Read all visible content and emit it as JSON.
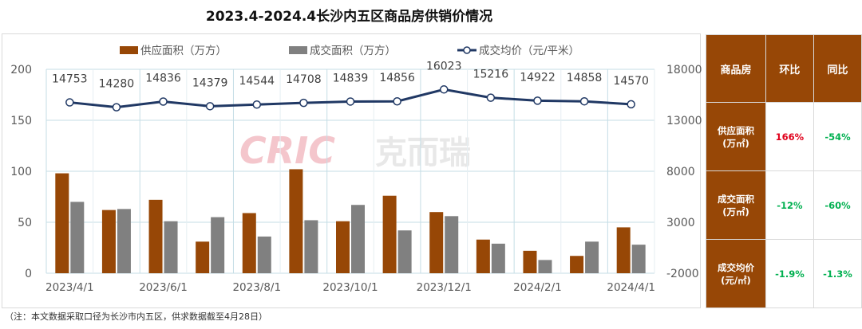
{
  "title": "2023.4-2024.4长沙内五区商品房供销价情况",
  "note": "（注：本文数据采取口径为长沙市内五区，供求数据截至4月28日）",
  "watermark": "CRIC 克而瑞",
  "colors": {
    "supply": "#974706",
    "deal": "#808080",
    "price": "#203864",
    "table_header": "#974706",
    "positive": "#e0001b",
    "negative": "#00b050"
  },
  "chart_data": {
    "type": "bar+line",
    "categories": [
      "2023/4/1",
      "2023/5/1",
      "2023/6/1",
      "2023/7/1",
      "2023/8/1",
      "2023/9/1",
      "2023/10/1",
      "2023/11/1",
      "2023/12/1",
      "2024/1/1",
      "2024/2/1",
      "2024/3/1",
      "2024/4/1"
    ],
    "x_tick_labels": [
      "2023/4/1",
      "2023/6/1",
      "2023/8/1",
      "2023/10/1",
      "2023/12/1",
      "2024/2/1",
      "2024/4/1"
    ],
    "series": [
      {
        "name": "供应面积（万方）",
        "type": "bar",
        "axis": "left",
        "values": [
          98,
          62,
          72,
          31,
          59,
          102,
          51,
          76,
          60,
          33,
          22,
          17,
          45
        ]
      },
      {
        "name": "成交面积（万方）",
        "type": "bar",
        "axis": "left",
        "values": [
          70,
          63,
          51,
          55,
          36,
          52,
          67,
          42,
          56,
          29,
          13,
          31,
          28
        ]
      },
      {
        "name": "成交均价（元/平米）",
        "type": "line",
        "axis": "right",
        "values": [
          14753,
          14280,
          14836,
          14379,
          14544,
          14708,
          14839,
          14856,
          16023,
          15216,
          14922,
          14858,
          14570
        ]
      }
    ],
    "y_left": {
      "range": [
        0,
        200
      ],
      "ticks": [
        0,
        50,
        100,
        150,
        200
      ]
    },
    "y_right": {
      "range": [
        -2000,
        18000
      ],
      "ticks": [
        -2000,
        3000,
        8000,
        13000,
        18000
      ]
    },
    "grid": true,
    "legend": "top"
  },
  "table": {
    "headers": [
      "商品房",
      "环比",
      "同比"
    ],
    "rows": [
      {
        "label1": "供应面积",
        "label2": "(万㎡)",
        "mom": "166%",
        "yoy": "-54%",
        "mom_sign": "pos",
        "yoy_sign": "neg"
      },
      {
        "label1": "成交面积",
        "label2": "(万㎡)",
        "mom": "-12%",
        "yoy": "-60%",
        "mom_sign": "neg",
        "yoy_sign": "neg"
      },
      {
        "label1": "成交均价",
        "label2": "(元/㎡)",
        "mom": "-1.9%",
        "yoy": "-1.3%",
        "mom_sign": "neg",
        "yoy_sign": "neg"
      }
    ]
  }
}
